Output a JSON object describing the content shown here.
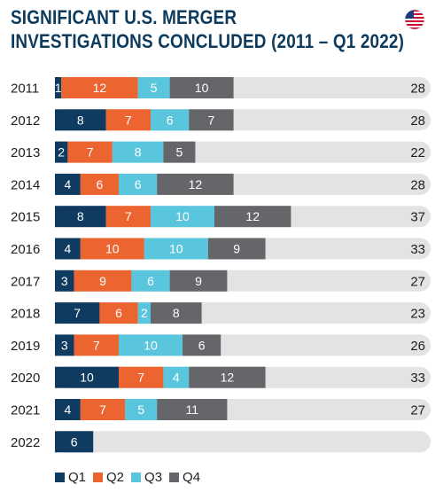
{
  "title_lines": [
    "SIGNIFICANT U.S. MERGER",
    "INVESTIGATIONS CONCLUDED (2011 – Q1 2022)"
  ],
  "flag_icon": "us-flag-icon",
  "colors": {
    "Q1": "#0e3b5f",
    "Q2": "#ec6430",
    "Q3": "#5ac6dd",
    "Q4": "#65666a",
    "track": "#e3e3e3",
    "title": "#0d3b5e"
  },
  "chart_data": {
    "type": "bar",
    "orientation": "horizontal",
    "stacked": true,
    "categories": [
      "2011",
      "2012",
      "2013",
      "2014",
      "2015",
      "2016",
      "2017",
      "2018",
      "2019",
      "2020",
      "2021",
      "2022"
    ],
    "series": [
      {
        "name": "Q1",
        "values": [
          1,
          8,
          2,
          4,
          8,
          4,
          3,
          7,
          3,
          10,
          4,
          6
        ]
      },
      {
        "name": "Q2",
        "values": [
          12,
          7,
          7,
          6,
          7,
          10,
          9,
          6,
          7,
          7,
          7,
          null
        ]
      },
      {
        "name": "Q3",
        "values": [
          5,
          6,
          8,
          6,
          10,
          10,
          6,
          2,
          10,
          4,
          5,
          null
        ]
      },
      {
        "name": "Q4",
        "values": [
          10,
          7,
          5,
          12,
          12,
          9,
          9,
          8,
          6,
          12,
          11,
          null
        ]
      }
    ],
    "totals": [
      "28",
      "28",
      "22",
      "28",
      "37",
      "33",
      "27",
      "23",
      "26",
      "33",
      "27",
      ""
    ],
    "xlim": [
      0,
      48
    ],
    "legend": [
      "Q1",
      "Q2",
      "Q3",
      "Q4"
    ],
    "legend_position": "bottom-left",
    "grid": false
  }
}
